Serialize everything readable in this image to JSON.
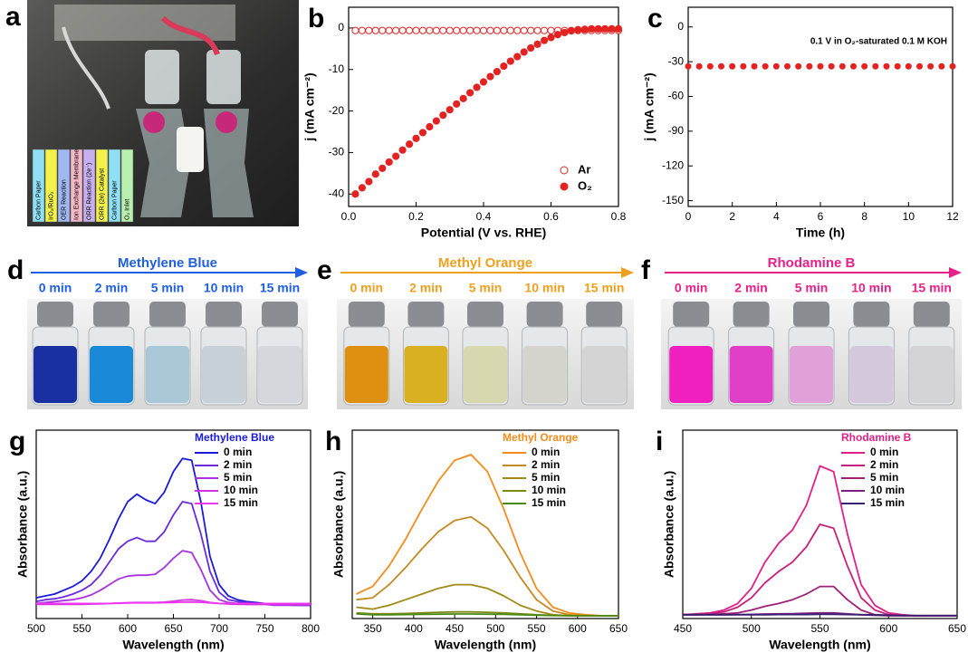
{
  "panels": {
    "a": {
      "label": "a",
      "diagram_labels": [
        "Carbon Paper",
        "IrO₂/RuO₂",
        "OER Reaction",
        "Ion Exchange Membrane",
        "ORR Reaction (2e⁻)",
        "ORR (2e) Catalyst",
        "Carbon Paper",
        "O₂ Inlet"
      ]
    },
    "d": {
      "label": "d",
      "title": "Methylene Blue",
      "times": [
        "0 min",
        "2 min",
        "5 min",
        "10 min",
        "15 min"
      ]
    },
    "e": {
      "label": "e",
      "title": "Methyl Orange",
      "times": [
        "0 min",
        "2 min",
        "5 min",
        "10 min",
        "15 min"
      ]
    },
    "f": {
      "label": "f",
      "title": "Rhodamine B",
      "times": [
        "0 min",
        "2 min",
        "5 min",
        "10 min",
        "15 min"
      ]
    }
  },
  "chart_data": [
    {
      "type": "scatter",
      "panel_label": "b",
      "xlabel": "Potential (V vs. RHE)",
      "ylabel": "j (mA cm⁻²)",
      "xlim": [
        0,
        0.8
      ],
      "ylim": [
        -43,
        5
      ],
      "xticks": [
        {
          "value": 0,
          "label": "0.0"
        },
        0.2,
        0.4,
        0.6,
        0.8
      ],
      "yticks": [
        0,
        -10,
        -20,
        -30,
        -40
      ],
      "legend": "lower right",
      "x": [
        0.02,
        0.04,
        0.06,
        0.08,
        0.1,
        0.12,
        0.14,
        0.16,
        0.18,
        0.2,
        0.22,
        0.24,
        0.26,
        0.28,
        0.3,
        0.32,
        0.34,
        0.36,
        0.38,
        0.4,
        0.42,
        0.44,
        0.46,
        0.48,
        0.5,
        0.52,
        0.54,
        0.56,
        0.58,
        0.6,
        0.62,
        0.64,
        0.66,
        0.68,
        0.7,
        0.72,
        0.74,
        0.76,
        0.78,
        0.8
      ],
      "series": [
        {
          "name": "Ar",
          "color": "#e32222",
          "marker": "open",
          "values": [
            -0.6,
            -0.6,
            -0.6,
            -0.6,
            -0.6,
            -0.6,
            -0.6,
            -0.6,
            -0.6,
            -0.6,
            -0.6,
            -0.6,
            -0.6,
            -0.6,
            -0.6,
            -0.6,
            -0.6,
            -0.6,
            -0.6,
            -0.6,
            -0.6,
            -0.6,
            -0.6,
            -0.6,
            -0.6,
            -0.6,
            -0.6,
            -0.6,
            -0.6,
            -0.6,
            -0.6,
            -0.6,
            -0.6,
            -0.6,
            -0.6,
            -0.6,
            -0.6,
            -0.6,
            -0.6,
            -0.6
          ]
        },
        {
          "name": "O₂",
          "color": "#e32222",
          "marker": "filled",
          "values": [
            -40,
            -38.5,
            -37,
            -35.2,
            -33.8,
            -32.3,
            -30.9,
            -29.4,
            -28,
            -26.6,
            -25.2,
            -23.8,
            -22.4,
            -21,
            -19.7,
            -18.3,
            -17,
            -15.6,
            -14.3,
            -13,
            -11.7,
            -10.5,
            -9.2,
            -8,
            -6.9,
            -5.8,
            -4.8,
            -3.9,
            -3,
            -2.3,
            -1.6,
            -1.1,
            -0.7,
            -0.4,
            -0.3,
            -0.2,
            -0.2,
            -0.2,
            -0.2,
            -0.2
          ]
        }
      ]
    },
    {
      "type": "scatter",
      "panel_label": "c",
      "xlabel": "Time (h)",
      "ylabel": "j (mA cm⁻²)",
      "annotation": "0.1 V in O₂-saturated 0.1 M KOH",
      "xlim": [
        0,
        12
      ],
      "ylim": [
        -155,
        17
      ],
      "xticks": [
        0,
        2,
        4,
        6,
        8,
        10,
        12
      ],
      "yticks": [
        0,
        -30,
        -60,
        -90,
        -120,
        -150
      ],
      "x": [
        0,
        0.5,
        1,
        1.5,
        2,
        2.5,
        3,
        3.5,
        4,
        4.5,
        5,
        5.5,
        6,
        6.5,
        7,
        7.5,
        8,
        8.5,
        9,
        9.5,
        10,
        10.5,
        11,
        11.5,
        12
      ],
      "series": [
        {
          "color": "#e32222",
          "marker": "filled",
          "values": [
            -34,
            -34,
            -34,
            -34,
            -34,
            -34,
            -34,
            -34,
            -34,
            -34,
            -34,
            -34,
            -34,
            -34,
            -34,
            -34,
            -34,
            -34,
            -34,
            -34,
            -34,
            -34,
            -34,
            -34,
            -34
          ]
        }
      ]
    },
    {
      "type": "line",
      "panel_label": "g",
      "xlabel": "Wavelength (nm)",
      "ylabel": "Absorbance (a.u.)",
      "legend_title": "Methylene Blue",
      "legend_title_color": "#1a1adb",
      "xlim": [
        500,
        800
      ],
      "ylim": [
        0,
        1
      ],
      "xticks": [
        500,
        550,
        600,
        650,
        700,
        750,
        800
      ],
      "x": [
        500,
        510,
        520,
        530,
        540,
        550,
        560,
        570,
        580,
        590,
        600,
        610,
        620,
        630,
        640,
        650,
        660,
        670,
        680,
        690,
        700,
        710,
        720,
        730,
        740,
        750,
        760,
        770,
        780,
        790,
        800
      ],
      "series": [
        {
          "name": "0 min",
          "color": "#1a1adb",
          "values": [
            0.11,
            0.12,
            0.13,
            0.15,
            0.17,
            0.2,
            0.25,
            0.32,
            0.42,
            0.53,
            0.62,
            0.66,
            0.63,
            0.61,
            0.67,
            0.78,
            0.85,
            0.84,
            0.62,
            0.33,
            0.18,
            0.12,
            0.1,
            0.09,
            0.085,
            0.08,
            0.08,
            0.075,
            0.075,
            0.07,
            0.07
          ]
        },
        {
          "name": "2 min",
          "color": "#6a2ae0",
          "values": [
            0.09,
            0.1,
            0.105,
            0.115,
            0.13,
            0.15,
            0.18,
            0.23,
            0.3,
            0.37,
            0.41,
            0.43,
            0.41,
            0.41,
            0.46,
            0.55,
            0.62,
            0.61,
            0.45,
            0.25,
            0.14,
            0.1,
            0.09,
            0.085,
            0.08,
            0.08,
            0.075,
            0.075,
            0.07,
            0.07,
            0.07
          ]
        },
        {
          "name": "5 min",
          "color": "#a832e0",
          "values": [
            0.08,
            0.085,
            0.09,
            0.095,
            0.1,
            0.11,
            0.125,
            0.15,
            0.18,
            0.21,
            0.225,
            0.23,
            0.23,
            0.235,
            0.27,
            0.32,
            0.36,
            0.35,
            0.26,
            0.15,
            0.1,
            0.085,
            0.08,
            0.075,
            0.075,
            0.075,
            0.07,
            0.07,
            0.07,
            0.07,
            0.07
          ]
        },
        {
          "name": "10 min",
          "color": "#d232e6",
          "values": [
            0.075,
            0.075,
            0.075,
            0.075,
            0.075,
            0.075,
            0.077,
            0.078,
            0.08,
            0.082,
            0.084,
            0.085,
            0.085,
            0.085,
            0.087,
            0.092,
            0.098,
            0.1,
            0.094,
            0.085,
            0.08,
            0.077,
            0.075,
            0.075,
            0.075,
            0.075,
            0.075,
            0.075,
            0.075,
            0.075,
            0.075
          ]
        },
        {
          "name": "15 min",
          "color": "#f034f0",
          "values": [
            0.08,
            0.08,
            0.08,
            0.08,
            0.08,
            0.08,
            0.08,
            0.08,
            0.08,
            0.081,
            0.082,
            0.083,
            0.083,
            0.083,
            0.084,
            0.085,
            0.087,
            0.088,
            0.086,
            0.083,
            0.08,
            0.08,
            0.08,
            0.08,
            0.08,
            0.08,
            0.08,
            0.08,
            0.08,
            0.08,
            0.08
          ]
        }
      ]
    },
    {
      "type": "line",
      "panel_label": "h",
      "xlabel": "Wavelength (nm)",
      "ylabel": "Absorbance (a.u.)",
      "legend_title": "Methyl Orange",
      "legend_title_color": "#f28c1c",
      "xlim": [
        325,
        650
      ],
      "ylim": [
        0,
        1
      ],
      "xticks": [
        350,
        400,
        450,
        500,
        550,
        600,
        650
      ],
      "x": [
        330,
        350,
        370,
        390,
        410,
        430,
        450,
        470,
        490,
        510,
        530,
        550,
        570,
        590,
        610,
        630,
        650
      ],
      "series": [
        {
          "name": "0 min",
          "color": "#f28c1c",
          "values": [
            0.13,
            0.17,
            0.28,
            0.42,
            0.58,
            0.73,
            0.84,
            0.87,
            0.78,
            0.58,
            0.35,
            0.16,
            0.06,
            0.03,
            0.02,
            0.015,
            0.015
          ]
        },
        {
          "name": "2 min",
          "color": "#c58a22",
          "values": [
            0.1,
            0.11,
            0.18,
            0.27,
            0.37,
            0.46,
            0.52,
            0.54,
            0.48,
            0.36,
            0.22,
            0.1,
            0.04,
            0.02,
            0.015,
            0.015,
            0.015
          ]
        },
        {
          "name": "5 min",
          "color": "#a08a14",
          "values": [
            0.06,
            0.05,
            0.07,
            0.1,
            0.13,
            0.16,
            0.18,
            0.18,
            0.16,
            0.12,
            0.07,
            0.04,
            0.02,
            0.015,
            0.015,
            0.015,
            0.015
          ]
        },
        {
          "name": "10 min",
          "color": "#7a8a14",
          "values": [
            0.03,
            0.025,
            0.025,
            0.027,
            0.03,
            0.033,
            0.035,
            0.035,
            0.033,
            0.03,
            0.025,
            0.02,
            0.017,
            0.015,
            0.015,
            0.015,
            0.015
          ]
        },
        {
          "name": "15 min",
          "color": "#4a8a14",
          "values": [
            0.025,
            0.02,
            0.02,
            0.021,
            0.022,
            0.023,
            0.024,
            0.024,
            0.023,
            0.022,
            0.02,
            0.018,
            0.016,
            0.015,
            0.015,
            0.015,
            0.015
          ]
        }
      ]
    },
    {
      "type": "line",
      "panel_label": "i",
      "xlabel": "Wavelength (nm)",
      "ylabel": "Absorbance (a.u.)",
      "legend_title": "Rhodamine B",
      "legend_title_color": "#e0208a",
      "xlim": [
        450,
        650
      ],
      "ylim": [
        0,
        1
      ],
      "xticks": [
        450,
        500,
        550,
        600,
        650
      ],
      "x": [
        450,
        460,
        470,
        480,
        490,
        500,
        510,
        520,
        530,
        540,
        550,
        560,
        570,
        580,
        590,
        600,
        610,
        620,
        630,
        640,
        650
      ],
      "series": [
        {
          "name": "0 min",
          "color": "#e0208a",
          "values": [
            0.02,
            0.025,
            0.03,
            0.045,
            0.08,
            0.16,
            0.3,
            0.4,
            0.47,
            0.6,
            0.81,
            0.78,
            0.45,
            0.18,
            0.07,
            0.03,
            0.02,
            0.015,
            0.015,
            0.015,
            0.015
          ]
        },
        {
          "name": "2 min",
          "color": "#c8207a",
          "values": [
            0.02,
            0.022,
            0.027,
            0.035,
            0.06,
            0.11,
            0.19,
            0.25,
            0.3,
            0.38,
            0.5,
            0.48,
            0.28,
            0.11,
            0.045,
            0.02,
            0.015,
            0.015,
            0.015,
            0.015,
            0.015
          ]
        },
        {
          "name": "5 min",
          "color": "#a02078",
          "values": [
            0.02,
            0.02,
            0.022,
            0.025,
            0.03,
            0.045,
            0.065,
            0.08,
            0.1,
            0.13,
            0.17,
            0.17,
            0.1,
            0.045,
            0.02,
            0.015,
            0.015,
            0.015,
            0.015,
            0.015,
            0.015
          ]
        },
        {
          "name": "10 min",
          "color": "#7a2080",
          "values": [
            0.02,
            0.02,
            0.02,
            0.02,
            0.021,
            0.022,
            0.024,
            0.025,
            0.026,
            0.028,
            0.03,
            0.03,
            0.025,
            0.02,
            0.017,
            0.015,
            0.015,
            0.015,
            0.015,
            0.015,
            0.015
          ]
        },
        {
          "name": "15 min",
          "color": "#3a2070",
          "values": [
            0.02,
            0.02,
            0.02,
            0.02,
            0.02,
            0.02,
            0.02,
            0.021,
            0.021,
            0.021,
            0.022,
            0.022,
            0.021,
            0.02,
            0.02,
            0.018,
            0.017,
            0.016,
            0.016,
            0.016,
            0.016
          ]
        }
      ]
    }
  ]
}
